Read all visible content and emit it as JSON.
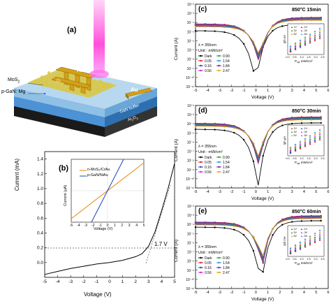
{
  "panel_a": {
    "label": "(a)",
    "labels": {
      "mos2": "MoS",
      "mos2_sub": "2",
      "pgan": "p-GaN: Mg",
      "au_top": "Au",
      "au_right": "Au",
      "cr": "Cr",
      "gan_buffer": "GaN buffer",
      "al2o3": "Al",
      "al2o3_sub": "2",
      "al2o3_o": "O",
      "al2o3_sub3": "3"
    },
    "colors": {
      "beam": "#ff4fd8",
      "au": "#d4a017",
      "mos2": "#e8d22a",
      "gan": "#5fa8e0",
      "substrate": "#1a1a1a"
    }
  },
  "panel_b": {
    "label": "(b)",
    "xlabel": "Voltage (V)",
    "ylabel": "Current (mA)",
    "xticks": [
      "-5",
      "-4",
      "-3",
      "-2",
      "-1",
      "0",
      "1",
      "2",
      "3",
      "4",
      "5"
    ],
    "yticks": [
      "0.0",
      "0.2",
      "0.4",
      "0.6",
      "0.8",
      "1.0",
      "1.2",
      "1.4"
    ],
    "annotation": "1.7 V",
    "inset": {
      "xlabel": "Voltage (V)",
      "ylabel": "Current (μA)",
      "xticks": [
        "-5",
        "-4",
        "-3",
        "-2",
        "-1",
        "0",
        "1",
        "2",
        "3",
        "4",
        "5"
      ],
      "legend": [
        "n-MoS₂/CrAu",
        "p-GaN/NiAu"
      ]
    }
  },
  "panel_c": {
    "label": "(c)",
    "title": "850°C 15min",
    "xlabel": "Voltage (V)",
    "ylabel": "Current (A)",
    "lambda": "λ = 355nm",
    "unit": "Unit : mW/cm²",
    "inset_xlabel": "P",
    "inset_xlabel_sub": "opt",
    "inset_xlabel_rest": " mW/cm²",
    "inset_ylabel": "Iph nA"
  },
  "panel_d": {
    "label": "(d)",
    "title": "850°C 30min",
    "xlabel": "Voltage (V)",
    "ylabel": "Current (A)",
    "lambda": "λ = 355nm",
    "unit": "Unit : mW/cm²",
    "inset_xlabel": "P",
    "inset_xlabel_sub": "opt",
    "inset_xlabel_rest": " mW/cm²",
    "inset_ylabel": "Iph μA"
  },
  "panel_e": {
    "label": "(e)",
    "title": "850°C 60min",
    "xlabel": "Voltage (V)",
    "ylabel": "Current (A)",
    "lambda": "λ = 355nm",
    "unit": "Unit : mW/cm²",
    "inset_xlabel": "P",
    "inset_xlabel_sub": "opt",
    "inset_xlabel_rest": " mW/cm²",
    "inset_ylabel": "Iph mA"
  },
  "legend_entries": [
    {
      "label": "Dark",
      "color": "#000000"
    },
    {
      "label": "0.05",
      "color": "#e31a1c"
    },
    {
      "label": "0.16",
      "color": "#1f3fbf"
    },
    {
      "label": "0.56",
      "color": "#d01fd0"
    },
    {
      "label": "0.90",
      "color": "#18a018"
    },
    {
      "label": "1.54",
      "color": "#1f8fe0"
    },
    {
      "label": "1.84",
      "color": "#6b1fa0"
    },
    {
      "label": "2.47",
      "color": "#e0a010"
    }
  ],
  "bias_legend": [
    "1V",
    "-1V",
    "3V",
    "-3V",
    "5V",
    "-5V"
  ],
  "right_xticks": [
    "-5",
    "-4",
    "-3",
    "-2",
    "-1",
    "0",
    "1",
    "2",
    "3",
    "4",
    "5",
    "6"
  ],
  "log_ticks": [
    "10⁻¹¹",
    "10⁻¹⁰",
    "10⁻⁹",
    "10⁻⁸",
    "10⁻⁷",
    "10⁻⁶",
    "10⁻⁵",
    "10⁻⁴",
    "10⁻³",
    "10⁻²"
  ],
  "inset_xticks": [
    "0.0",
    "0.5",
    "1.0",
    "1.5",
    "2.0",
    "2.5"
  ],
  "chart_data": [
    {
      "type": "line",
      "panel": "(b)",
      "xlabel": "Voltage (V)",
      "ylabel": "Current (mA)",
      "xlim": [
        -5,
        5
      ],
      "ylim": [
        -0.2,
        1.5
      ],
      "series": [
        {
          "x": [
            -5,
            -4,
            -3,
            -2,
            -1,
            0,
            1,
            2,
            2.5,
            3,
            3.5,
            4,
            4.5,
            5
          ],
          "values": [
            -0.16,
            -0.12,
            -0.08,
            -0.05,
            -0.02,
            0,
            0.03,
            0.08,
            0.12,
            0.22,
            0.42,
            0.7,
            1.0,
            1.34
          ]
        }
      ]
    },
    {
      "type": "line",
      "panel": "(b) inset",
      "xlabel": "Voltage (V)",
      "ylabel": "Current (μA)",
      "xlim": [
        -5,
        5
      ],
      "series": [
        {
          "name": "n-MoS₂/CrAu",
          "x": [
            -5,
            -2.5,
            0,
            2.5,
            5
          ],
          "values": [
            -5,
            -2.6,
            0,
            2.6,
            5
          ]
        },
        {
          "name": "p-GaN/NiAu",
          "x": [
            -2.2,
            -1,
            0,
            1,
            2.2
          ],
          "values": [
            -5,
            -2.3,
            0,
            2.3,
            5
          ]
        }
      ]
    }
  ]
}
